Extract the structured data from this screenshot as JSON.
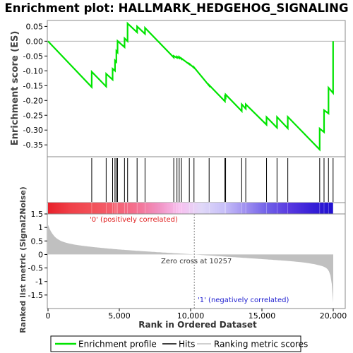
{
  "chart_data": {
    "type": "line",
    "title": "Enrichment plot: HALLMARK_HEDGEHOG_SIGNALING",
    "xlabel": "Rank in Ordered Dataset",
    "ylabel_top": "Enrichment score (ES)",
    "ylabel_bottom": "Ranked list metric (Signal2Noise)",
    "xlim": [
      0,
      20000
    ],
    "x_ticks": [
      0,
      5000,
      10000,
      15000,
      20000
    ],
    "x_tick_labels": [
      "0",
      "5,000",
      "10,000",
      "15,000",
      "20,000"
    ],
    "es_ylim": [
      -0.39,
      0.07
    ],
    "es_y_ticks": [
      0.05,
      0.0,
      -0.05,
      -0.1,
      -0.15,
      -0.2,
      -0.25,
      -0.3,
      -0.35
    ],
    "es_y_tick_labels": [
      "0.05",
      "0.00",
      "-0.05",
      "-0.10",
      "-0.15",
      "-0.20",
      "-0.25",
      "-0.30",
      "-0.35"
    ],
    "metric_ylim": [
      -2.0,
      1.5
    ],
    "metric_y_ticks": [
      1.5,
      1.0,
      0.5,
      0.0,
      -0.5,
      -1.0,
      -1.5
    ],
    "metric_y_tick_labels": [
      "1.5",
      "1",
      "0.5",
      "0",
      "-0.5",
      "-1",
      "-1.5"
    ],
    "hits": [
      3066,
      4078,
      4530,
      4697,
      4791,
      4875,
      5364,
      5580,
      6247,
      6803,
      8818,
      9043,
      9198,
      9357,
      9909,
      10236,
      11298,
      12405,
      12453,
      13582,
      13866,
      15324,
      16058,
      16814,
      19051,
      19355,
      19666,
      19990
    ],
    "es_curve": {
      "x": [
        0,
        3066,
        3066,
        4078,
        4078,
        4530,
        4530,
        4697,
        4697,
        4791,
        4791,
        4875,
        4875,
        5364,
        5364,
        5580,
        5580,
        6247,
        6247,
        6803,
        6803,
        8818,
        8818,
        9043,
        9043,
        9198,
        9198,
        9357,
        9357,
        9909,
        9909,
        10236,
        10236,
        11298,
        11298,
        12405,
        12405,
        12453,
        12453,
        13582,
        13582,
        13866,
        13866,
        15324,
        15324,
        16058,
        16058,
        16814,
        16814,
        19051,
        19051,
        19355,
        19355,
        19666,
        19666,
        19990,
        19990
      ],
      "y": [
        0.0,
        -0.155,
        -0.103,
        -0.153,
        -0.11,
        -0.13,
        -0.093,
        -0.1,
        -0.065,
        -0.07,
        -0.033,
        -0.038,
        0.001,
        -0.02,
        0.01,
        0.0,
        0.06,
        0.03,
        0.05,
        0.025,
        0.045,
        -0.055,
        -0.05,
        -0.056,
        -0.052,
        -0.057,
        -0.053,
        -0.06,
        -0.058,
        -0.078,
        -0.076,
        -0.09,
        -0.088,
        -0.15,
        -0.148,
        -0.203,
        -0.187,
        -0.19,
        -0.18,
        -0.236,
        -0.213,
        -0.228,
        -0.213,
        -0.282,
        -0.256,
        -0.292,
        -0.256,
        -0.294,
        -0.255,
        -0.366,
        -0.295,
        -0.307,
        -0.233,
        -0.244,
        -0.157,
        -0.175,
        0.0
      ]
    },
    "ranked_list_bar": {
      "start": 0,
      "end": 20000,
      "zero_cross": 10257,
      "colors": [
        "#e8202a",
        "#f04048",
        "#f25058",
        "#f46070",
        "#f47090",
        "#f090c0",
        "#f8c0f0",
        "#e0d8f8",
        "#c8c0f8",
        "#a090f0",
        "#7060e8",
        "#5838e0",
        "#3820d8",
        "#2010d0"
      ]
    },
    "annotations": {
      "positive": "'0' (positively correlated)",
      "zero_cross": "Zero cross at 10257",
      "negative": "'1' (negatively correlated)"
    },
    "legend": [
      "Enrichment profile",
      "Hits",
      "Ranking metric scores"
    ],
    "colors": {
      "enrichment_profile": "#00e400",
      "hits": "#000000",
      "metric_fill": "#c0c0c0",
      "positive_text": "#e02020",
      "negative_text": "#2020d0"
    }
  }
}
